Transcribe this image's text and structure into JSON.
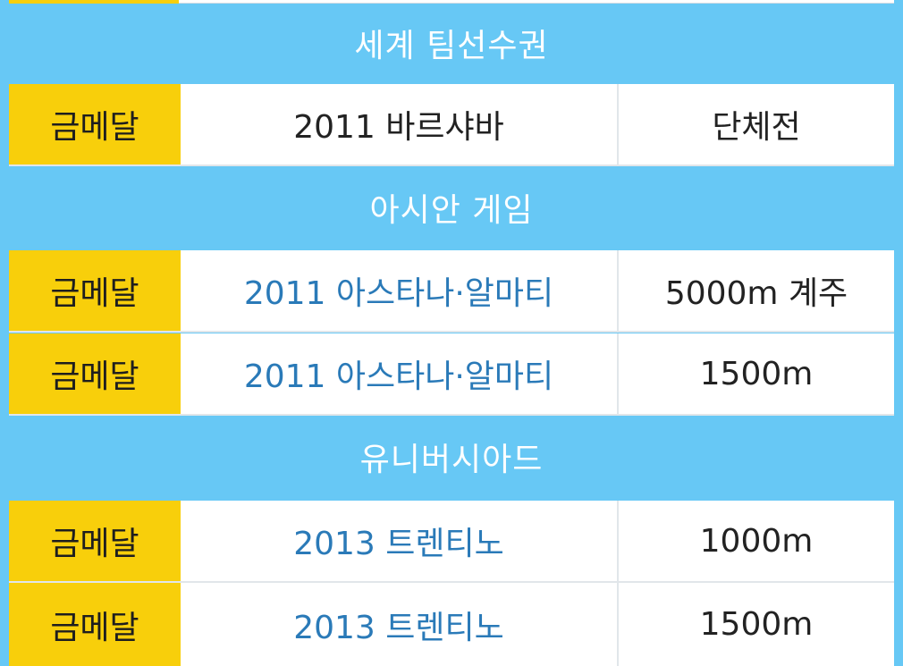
{
  "sections": [
    {
      "title": "세계 팀선수권",
      "rows": [
        {
          "medal": "금메달",
          "event": "2011 바르샤바",
          "discipline": "단체전"
        }
      ]
    },
    {
      "title": "아시안 게임",
      "rows": [
        {
          "medal": "금메달",
          "event": "2011 아스타나·알마티",
          "discipline": "5000m 계주"
        },
        {
          "medal": "금메달",
          "event": "2011 아스타나·알마티",
          "discipline": "1500m"
        }
      ]
    },
    {
      "title": "유니버시아드",
      "rows": [
        {
          "medal": "금메달",
          "event": "2013 트렌티노",
          "discipline": "1000m"
        },
        {
          "medal": "금메달",
          "event": "2013 트렌티노",
          "discipline": "1500m"
        }
      ]
    }
  ],
  "colors": {
    "header_background": "#67c8f5",
    "medal_gold": "#f8cf0b",
    "link_text": "#2a7ab8"
  }
}
